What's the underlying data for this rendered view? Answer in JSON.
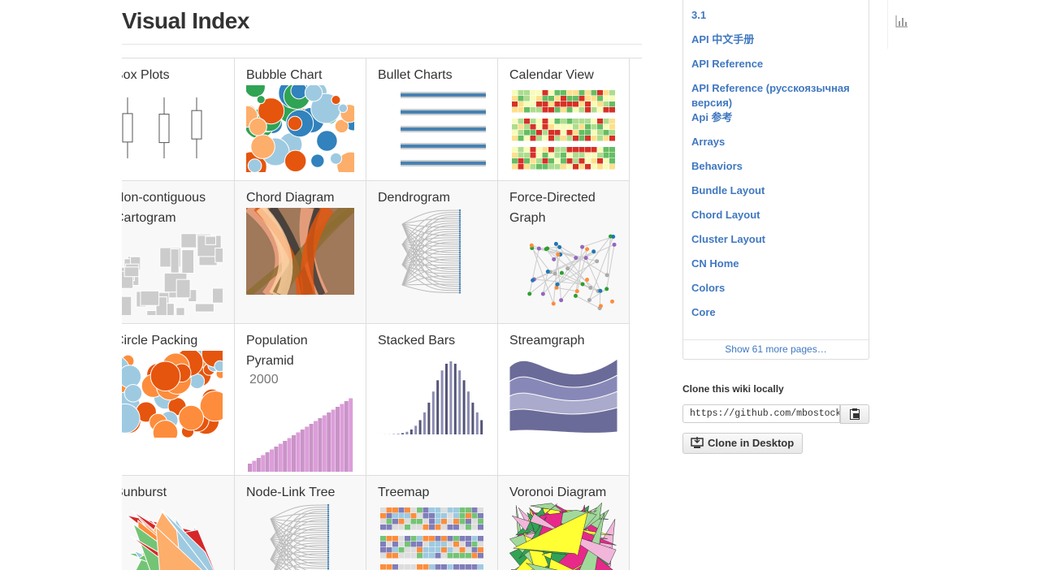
{
  "header": {
    "title": "Visual Index"
  },
  "gallery": {
    "rows": [
      [
        {
          "label": "Box Plots"
        },
        {
          "label": "Bubble Chart"
        },
        {
          "label": "Bullet Charts"
        },
        {
          "label": "Calendar View"
        }
      ],
      [
        {
          "label": "Non-contiguous Cartogram"
        },
        {
          "label": "Chord Diagram"
        },
        {
          "label": "Dendrogram"
        },
        {
          "label": "Force-Directed Graph"
        }
      ],
      [
        {
          "label": "Circle Packing"
        },
        {
          "label": "Population Pyramid",
          "note": "2000"
        },
        {
          "label": "Stacked Bars"
        },
        {
          "label": "Streamgraph"
        }
      ],
      [
        {
          "label": "Sunburst"
        },
        {
          "label": "Node-Link Tree"
        },
        {
          "label": "Treemap"
        },
        {
          "label": "Voronoi Diagram"
        }
      ]
    ]
  },
  "sidebar": {
    "pages": [
      "3.1",
      "API 中文手册",
      "API Reference",
      "API Reference (русскоязычная версия)",
      "Api 参考",
      "Arrays",
      "Behaviors",
      "Bundle Layout",
      "Chord Layout",
      "Cluster Layout",
      "CN Home",
      "Colors",
      "Core"
    ],
    "more": "Show 61 more pages…"
  },
  "clone": {
    "heading": "Clone this wiki locally",
    "url": "https://github.com/mbostock",
    "button": "Clone in Desktop"
  }
}
